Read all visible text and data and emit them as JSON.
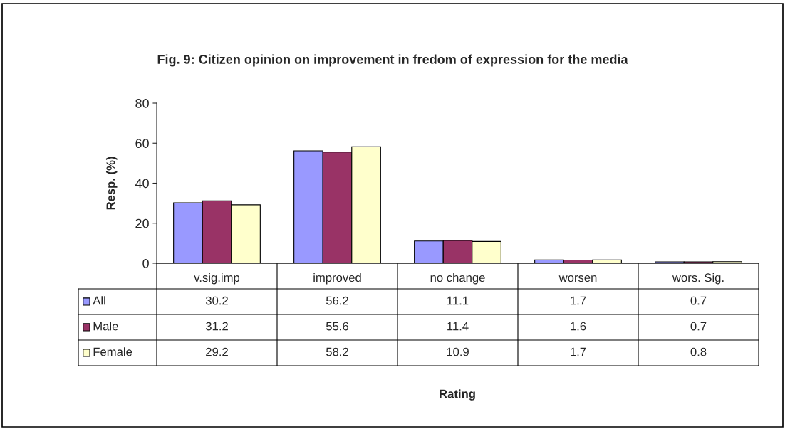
{
  "chart_data": {
    "type": "bar",
    "title": "Fig. 9: Citizen opinion on improvement in fredom of expression for the media",
    "annotations": [
      "Rating"
    ],
    "ylabel": "Resp. (%)",
    "categories": [
      "v.sig.imp",
      "improved",
      "no change",
      "worsen",
      "wors. Sig."
    ],
    "series": [
      {
        "name": "All",
        "color": "#9999ff",
        "values": [
          30.2,
          56.2,
          11.1,
          1.7,
          0.7
        ]
      },
      {
        "name": "Male",
        "color": "#993366",
        "values": [
          31.2,
          55.6,
          11.4,
          1.6,
          0.7
        ]
      },
      {
        "name": "Female",
        "color": "#ffffcc",
        "values": [
          29.2,
          58.2,
          10.9,
          1.7,
          0.8
        ]
      }
    ],
    "ylim": [
      0,
      80
    ],
    "yticks": [
      0,
      20,
      40,
      60,
      80
    ],
    "grid": false,
    "legend": "bottom left",
    "data_labels": true
  }
}
